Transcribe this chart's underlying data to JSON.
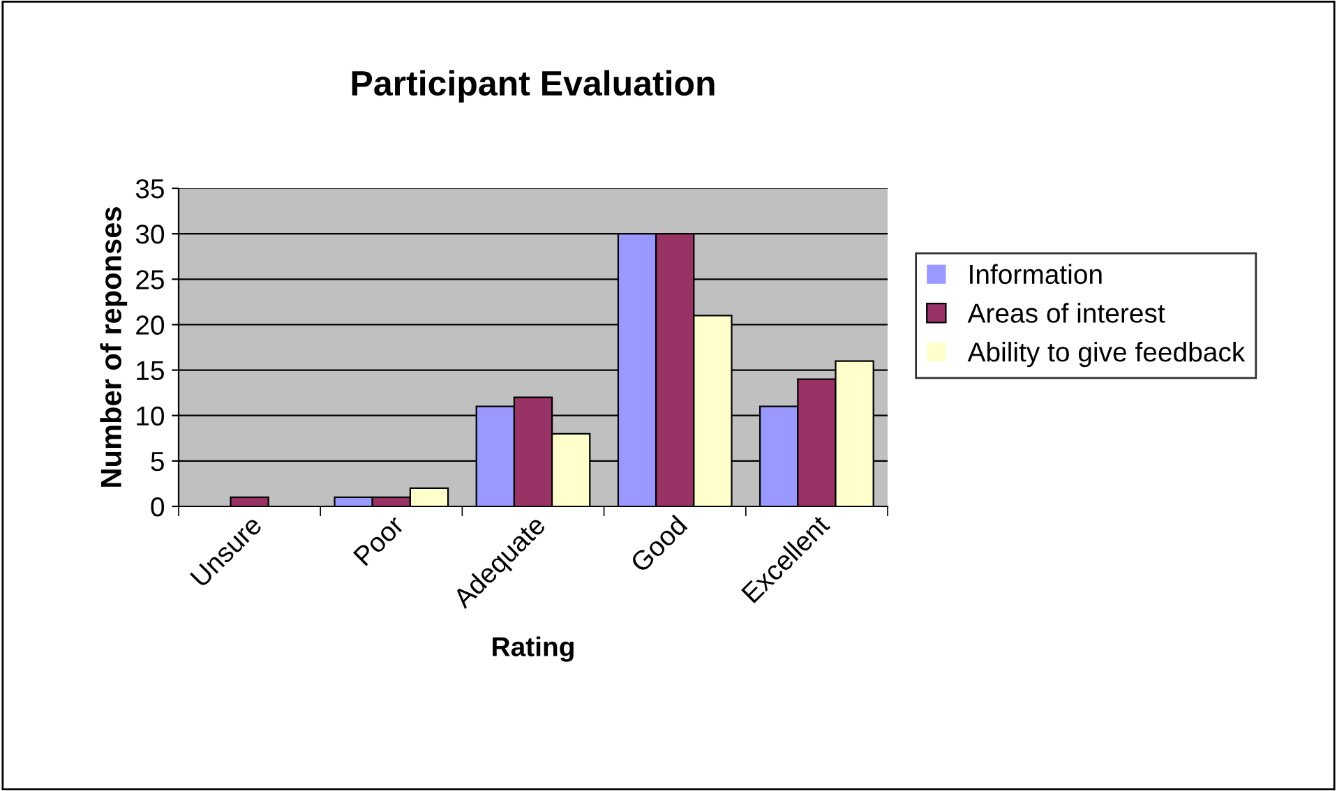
{
  "chart_data": {
    "type": "bar",
    "title": "Participant Evaluation",
    "xlabel": "Rating",
    "ylabel": "Number of reponses",
    "categories": [
      "Unsure",
      "Poor",
      "Adequate",
      "Good",
      "Excellent"
    ],
    "series": [
      {
        "name": "Information",
        "color": "#9999ff",
        "values": [
          0,
          1,
          11,
          30,
          11
        ]
      },
      {
        "name": "Areas of interest",
        "color": "#993366",
        "values": [
          1,
          1,
          12,
          30,
          14
        ]
      },
      {
        "name": "Ability to give feedback",
        "color": "#ffffcc",
        "values": [
          0,
          2,
          8,
          21,
          16
        ]
      }
    ],
    "ylim": [
      0,
      35
    ],
    "yticks": [
      0,
      5,
      10,
      15,
      20,
      25,
      30,
      35
    ],
    "grid": "y",
    "legend": "right"
  }
}
